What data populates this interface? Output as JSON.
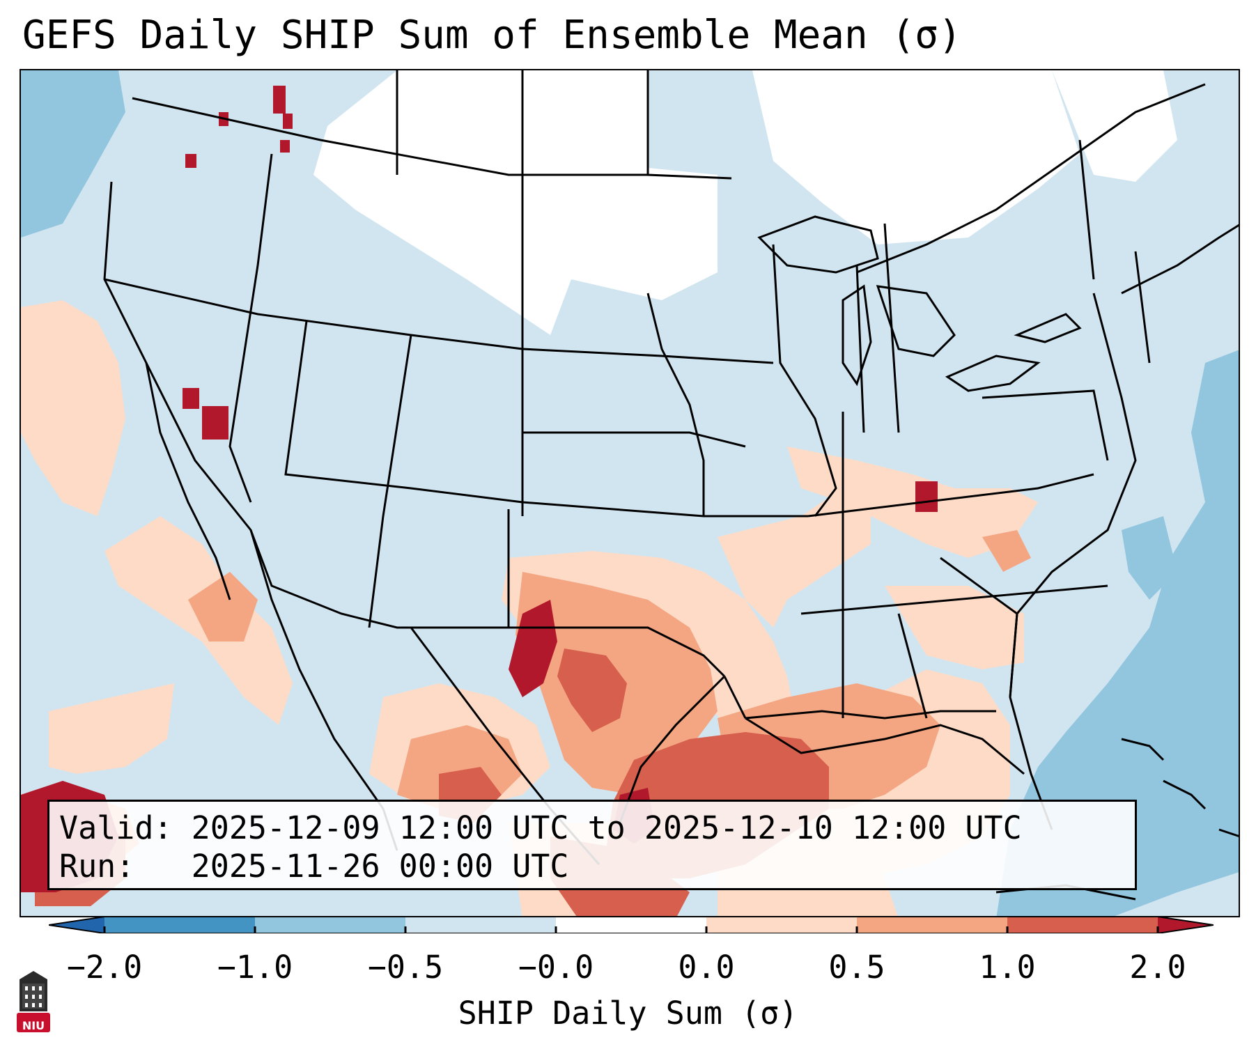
{
  "title": "GEFS Daily SHIP Sum of Ensemble Mean (σ)",
  "info": {
    "valid_line": "Valid: 2025-12-09 12:00 UTC to 2025-12-10 12:00 UTC",
    "run_line": "Run:   2025-11-26 00:00 UTC"
  },
  "colorbar": {
    "label": "SHIP Daily Sum (σ)",
    "ticks": [
      "−2.0",
      "−1.0",
      "−0.5",
      "−0.0",
      "0.0",
      "0.5",
      "1.0",
      "2.0"
    ],
    "bin_colors": [
      "#2166ac",
      "#4393c3",
      "#92c5de",
      "#d1e5f0",
      "#ffffff",
      "#fddbc7",
      "#f4a582",
      "#d6604d",
      "#b2182b"
    ]
  },
  "logo": {
    "text": "NIU",
    "color": "#c8102e"
  }
}
